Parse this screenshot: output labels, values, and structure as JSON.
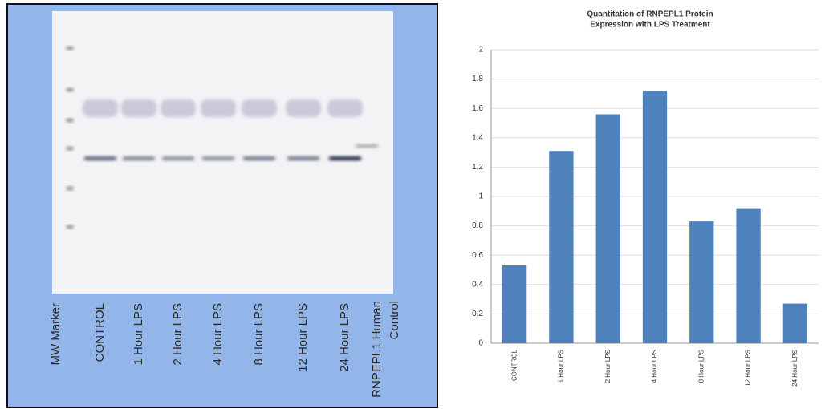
{
  "blot": {
    "lanes": [
      [
        "MW Marker"
      ],
      [
        "CONTROL"
      ],
      [
        "1 Hour  LPS"
      ],
      [
        "2 Hour  LPS"
      ],
      [
        "4 Hour  LPS"
      ],
      [
        "8 Hour  LPS"
      ],
      [
        "12 Hour  LPS"
      ],
      [
        "24 Hour  LPS"
      ],
      [
        "RNPEPL1  Human",
        "Control"
      ]
    ]
  },
  "chart_data": {
    "type": "bar",
    "title": [
      "Quantitation of RNPEPL1 Protein",
      "Expression with LPS Treatment"
    ],
    "categories": [
      "CONTROL",
      "1 Hour LPS",
      "2 Hour LPS",
      "4 Hour LPS",
      "8 Hour LPS",
      "12 Hour LPS",
      "24 Hour LPS"
    ],
    "values": [
      0.53,
      1.31,
      1.56,
      1.72,
      0.83,
      0.92,
      0.27
    ],
    "color": "#4f81bd",
    "ylim": [
      0,
      2
    ],
    "yticks": [
      0,
      0.2,
      0.4,
      0.6,
      0.8,
      1,
      1.2,
      1.4,
      1.6,
      1.8,
      2
    ],
    "grid": true
  }
}
